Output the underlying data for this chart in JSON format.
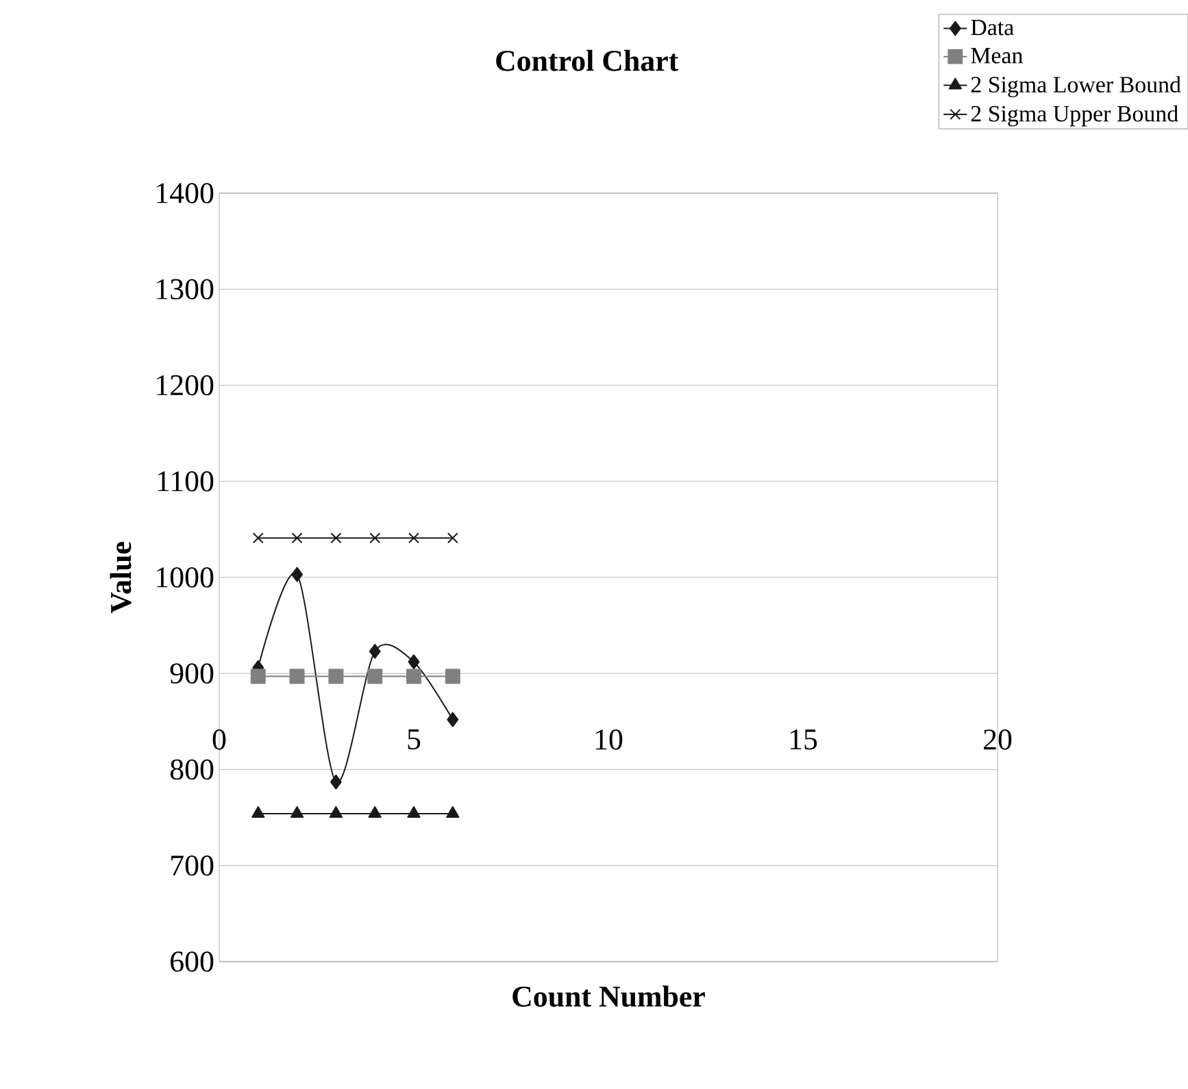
{
  "chart_data": {
    "type": "line",
    "title": "Control Chart",
    "xlabel": "Count Number",
    "ylabel": "Value",
    "x": [
      1,
      2,
      3,
      4,
      5,
      6
    ],
    "series": [
      {
        "name": "Data",
        "color": "#1a1a1a",
        "marker": "diamond",
        "values": [
          906,
          1003,
          787,
          923,
          912,
          852
        ]
      },
      {
        "name": "Mean",
        "color": "#808080",
        "marker": "square",
        "values": [
          897,
          897,
          897,
          897,
          897,
          897
        ]
      },
      {
        "name": "2 Sigma Lower Bound",
        "color": "#1a1a1a",
        "marker": "triangle",
        "values": [
          754,
          754,
          754,
          754,
          754,
          754
        ]
      },
      {
        "name": "2 Sigma Upper Bound",
        "color": "#1a1a1a",
        "marker": "cross",
        "values": [
          1041,
          1041,
          1041,
          1041,
          1041,
          1041
        ]
      }
    ],
    "xlim": [
      0,
      20
    ],
    "xticks": [
      0,
      5,
      10,
      15,
      20
    ],
    "ylim": [
      600,
      1400
    ],
    "yticks": [
      600,
      700,
      800,
      900,
      1000,
      1100,
      1200,
      1300,
      1400
    ],
    "grid": "y",
    "legend": "top right",
    "line_style": "solid"
  }
}
